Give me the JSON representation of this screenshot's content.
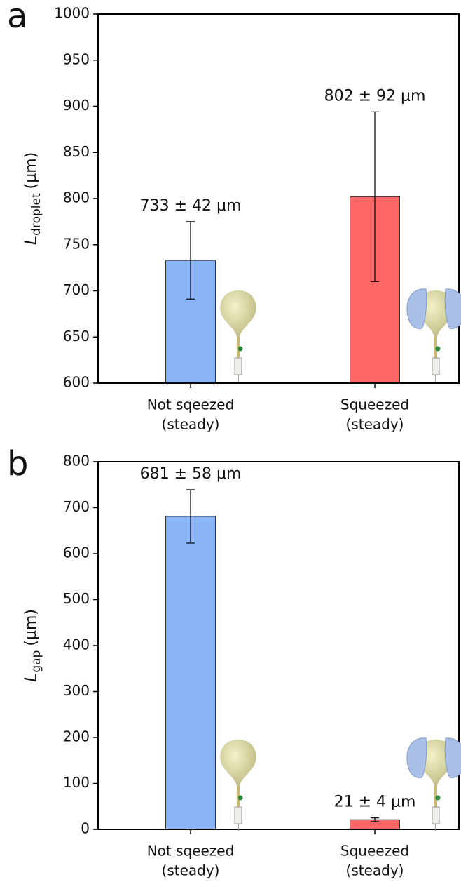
{
  "chart_data": [
    {
      "type": "bar",
      "panel": "a",
      "ylabel": {
        "main": "L",
        "sub": "droplet",
        "unit": "(μm)"
      },
      "categories": [
        [
          "Not sqeezed",
          "(steady)"
        ],
        [
          "Squeezed",
          "(steady)"
        ]
      ],
      "values": [
        733,
        802
      ],
      "errors": [
        42,
        92
      ],
      "value_labels": [
        "733 ± 42 μm",
        "802 ± 92 μm"
      ],
      "colors": [
        "#8ab4f8",
        "#ff6666"
      ],
      "ylim": [
        600,
        1000
      ],
      "yticks": [
        600,
        650,
        700,
        750,
        800,
        850,
        900,
        950,
        1000
      ]
    },
    {
      "type": "bar",
      "panel": "b",
      "ylabel": {
        "main": "L",
        "sub": "gap",
        "unit": "(μm)"
      },
      "categories": [
        [
          "Not sqeezed",
          "(steady)"
        ],
        [
          "Squeezed",
          "(steady)"
        ]
      ],
      "values": [
        681,
        21
      ],
      "errors": [
        58,
        4
      ],
      "value_labels": [
        "681 ± 58 μm",
        "21 ± 4 μm"
      ],
      "colors": [
        "#8ab4f8",
        "#ff6666"
      ],
      "ylim": [
        0,
        800
      ],
      "yticks": [
        0,
        100,
        200,
        300,
        400,
        500,
        600,
        700,
        800
      ]
    }
  ]
}
